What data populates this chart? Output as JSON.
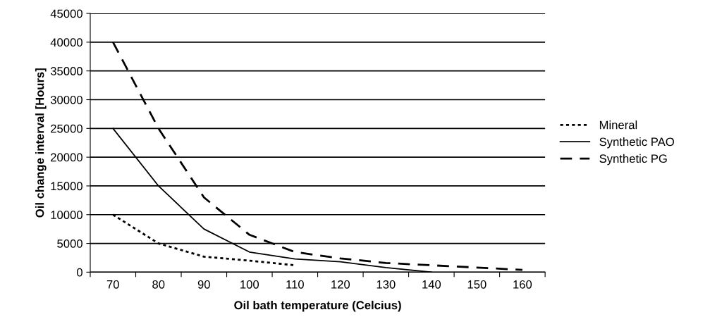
{
  "chart_data": {
    "type": "line",
    "xlabel": "Oil bath temperature (Celcius)",
    "ylabel": "Oil change interval [Hours]",
    "categories": [
      "70",
      "80",
      "90",
      "100",
      "110",
      "120",
      "130",
      "140",
      "150",
      "160"
    ],
    "series": [
      {
        "name": "Mineral",
        "color": "#000000",
        "line_style": "dotted",
        "values": [
          10000,
          5000,
          2700,
          2000,
          1200,
          null,
          null,
          null,
          null,
          null
        ]
      },
      {
        "name": "Synthetic PAO",
        "color": "#000000",
        "line_style": "solid",
        "values": [
          25000,
          15000,
          7500,
          3500,
          2300,
          1800,
          800,
          0,
          null,
          null
        ]
      },
      {
        "name": "Synthetic PG",
        "color": "#000000",
        "line_style": "dashed",
        "values": [
          40000,
          25000,
          13000,
          6500,
          3500,
          2400,
          1600,
          1200,
          800,
          400
        ]
      }
    ],
    "ylim": [
      0,
      45000
    ],
    "yticks": [
      0,
      5000,
      10000,
      15000,
      20000,
      25000,
      30000,
      35000,
      40000,
      45000
    ],
    "grid": "y",
    "legend": "right",
    "marker": "none"
  }
}
